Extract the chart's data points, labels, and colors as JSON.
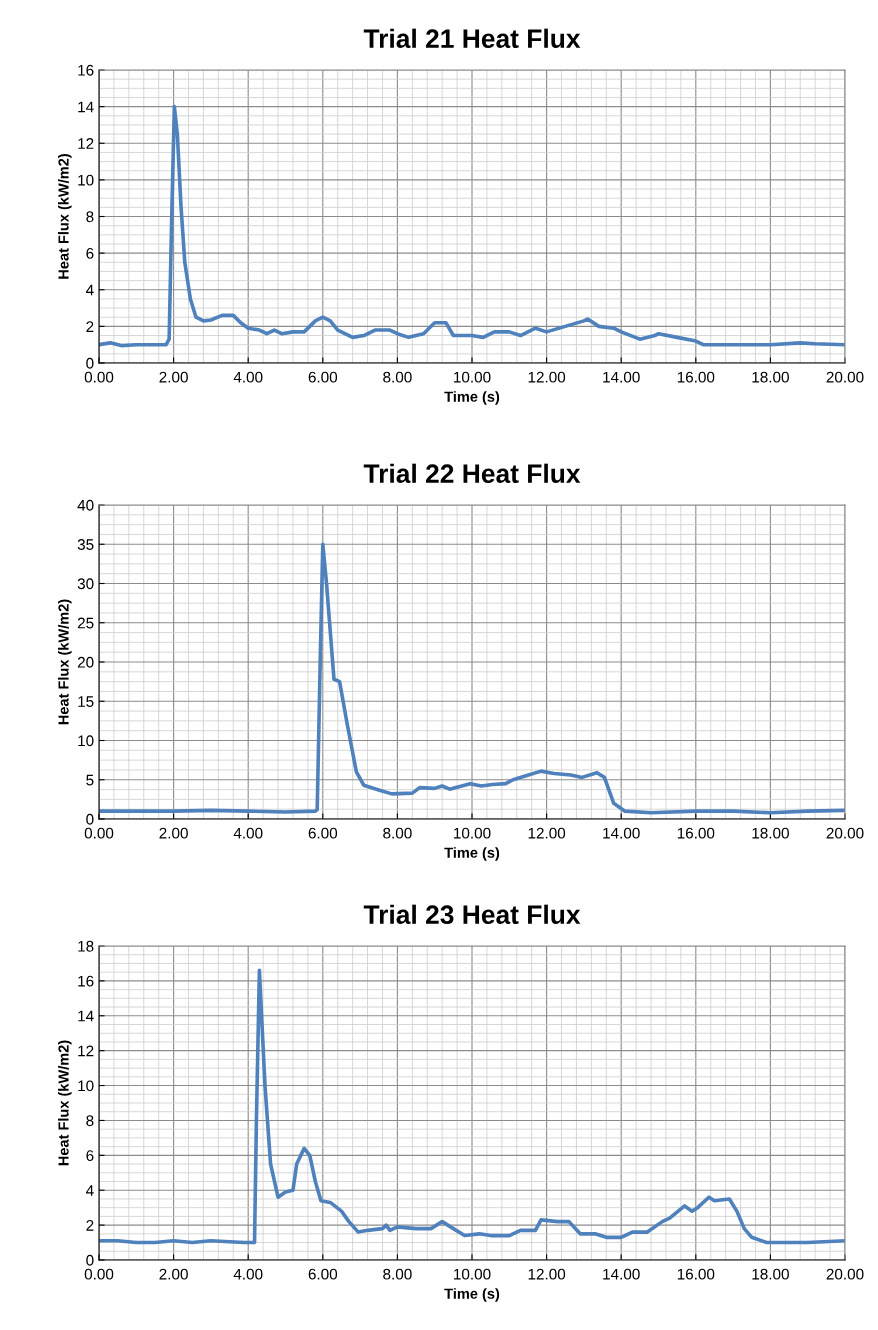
{
  "chart_data": [
    {
      "type": "line",
      "title": "Trial 21 Heat Flux",
      "xlabel": "Time (s)",
      "ylabel": "Heat Flux (kW/m2)",
      "grid": true,
      "marker": "none",
      "line_style": "solid",
      "xlim": [
        0,
        20
      ],
      "ylim": [
        0,
        16
      ],
      "xticks": [
        {
          "value": 0,
          "label": "0.00"
        },
        {
          "value": 2,
          "label": "2.00"
        },
        {
          "value": 4,
          "label": "4.00"
        },
        {
          "value": 6,
          "label": "6.00"
        },
        {
          "value": 8,
          "label": "8.00"
        },
        {
          "value": 10,
          "label": "10.00"
        },
        {
          "value": 12,
          "label": "12.00"
        },
        {
          "value": 14,
          "label": "14.00"
        },
        {
          "value": 16,
          "label": "16.00"
        },
        {
          "value": 18,
          "label": "18.00"
        },
        {
          "value": 20,
          "label": "20.00"
        }
      ],
      "yticks": [
        0,
        2,
        4,
        6,
        8,
        10,
        12,
        14,
        16
      ],
      "series": [
        {
          "color": "#4f81bd",
          "x": [
            0,
            0.3,
            0.6,
            1.0,
            1.4,
            1.8,
            1.88,
            1.95,
            2.02,
            2.1,
            2.2,
            2.3,
            2.45,
            2.6,
            2.8,
            3.0,
            3.3,
            3.6,
            3.8,
            4.0,
            4.3,
            4.5,
            4.7,
            4.9,
            5.2,
            5.5,
            5.8,
            6.0,
            6.2,
            6.4,
            6.8,
            7.1,
            7.4,
            7.8,
            8.0,
            8.3,
            8.7,
            9.0,
            9.3,
            9.5,
            10.0,
            10.3,
            10.6,
            11.0,
            11.3,
            11.7,
            12.0,
            12.5,
            13.0,
            13.1,
            13.4,
            13.8,
            14.0,
            14.5,
            14.9,
            15.0,
            15.5,
            16.0,
            16.2,
            17.0,
            18.0,
            18.8,
            19.2,
            20.0
          ],
          "values": [
            1.0,
            1.1,
            0.95,
            1.0,
            1.0,
            1.0,
            1.3,
            8,
            14.0,
            12.5,
            8.5,
            5.5,
            3.5,
            2.5,
            2.3,
            2.35,
            2.6,
            2.6,
            2.2,
            1.9,
            1.8,
            1.6,
            1.8,
            1.6,
            1.7,
            1.7,
            2.3,
            2.5,
            2.3,
            1.8,
            1.4,
            1.5,
            1.8,
            1.8,
            1.6,
            1.4,
            1.6,
            2.2,
            2.2,
            1.5,
            1.5,
            1.4,
            1.7,
            1.7,
            1.5,
            1.9,
            1.7,
            2.0,
            2.3,
            2.4,
            2.0,
            1.9,
            1.7,
            1.3,
            1.5,
            1.6,
            1.4,
            1.2,
            1.0,
            1.0,
            1.0,
            1.1,
            1.05,
            1.0
          ]
        }
      ]
    },
    {
      "type": "line",
      "title": "Trial 22 Heat Flux",
      "xlabel": "Time (s)",
      "ylabel": "Heat Flux (kW/m2)",
      "grid": true,
      "marker": "none",
      "line_style": "solid",
      "xlim": [
        0,
        20
      ],
      "ylim": [
        0,
        40
      ],
      "xticks": [
        {
          "value": 0,
          "label": "0.00"
        },
        {
          "value": 2,
          "label": "2.00"
        },
        {
          "value": 4,
          "label": "4.00"
        },
        {
          "value": 6,
          "label": "6.00"
        },
        {
          "value": 8,
          "label": "8.00"
        },
        {
          "value": 10,
          "label": "10.00"
        },
        {
          "value": 12,
          "label": "12.00"
        },
        {
          "value": 14,
          "label": "14.00"
        },
        {
          "value": 16,
          "label": "16.00"
        },
        {
          "value": 18,
          "label": "18.00"
        },
        {
          "value": 20,
          "label": "20.00"
        }
      ],
      "yticks": [
        0,
        5,
        10,
        15,
        20,
        25,
        30,
        35,
        40
      ],
      "series": [
        {
          "color": "#4f81bd",
          "x": [
            0,
            1,
            2,
            3,
            4,
            5,
            5.8,
            5.85,
            5.93,
            6.0,
            6.1,
            6.3,
            6.45,
            6.65,
            6.9,
            7.1,
            7.5,
            7.85,
            8.4,
            8.6,
            9.0,
            9.2,
            9.4,
            9.95,
            10.25,
            10.55,
            10.9,
            11.1,
            11.45,
            11.85,
            12.2,
            12.65,
            12.95,
            13.35,
            13.55,
            13.8,
            14.1,
            14.8,
            16,
            17,
            18,
            19,
            20
          ],
          "values": [
            1.0,
            1.0,
            1.0,
            1.1,
            1.0,
            0.9,
            1.0,
            1.2,
            20,
            35,
            30,
            17.8,
            17.5,
            12.2,
            6,
            4.3,
            3.7,
            3.2,
            3.3,
            4.0,
            3.9,
            4.2,
            3.8,
            4.5,
            4.2,
            4.4,
            4.5,
            5.0,
            5.5,
            6.1,
            5.8,
            5.6,
            5.3,
            5.9,
            5.3,
            2.0,
            1.0,
            0.8,
            1.0,
            1.0,
            0.8,
            1.0,
            1.1
          ]
        }
      ]
    },
    {
      "type": "line",
      "title": "Trial 23 Heat Flux",
      "xlabel": "Time (s)",
      "ylabel": "Heat Flux (kW/m2)",
      "grid": true,
      "marker": "none",
      "line_style": "solid",
      "xlim": [
        0,
        20
      ],
      "ylim": [
        0,
        18
      ],
      "xticks": [
        {
          "value": 0,
          "label": "0.00"
        },
        {
          "value": 2,
          "label": "2.00"
        },
        {
          "value": 4,
          "label": "4.00"
        },
        {
          "value": 6,
          "label": "6.00"
        },
        {
          "value": 8,
          "label": "8.00"
        },
        {
          "value": 10,
          "label": "10.00"
        },
        {
          "value": 12,
          "label": "12.00"
        },
        {
          "value": 14,
          "label": "14.00"
        },
        {
          "value": 16,
          "label": "16.00"
        },
        {
          "value": 18,
          "label": "18.00"
        },
        {
          "value": 20,
          "label": "20.00"
        }
      ],
      "yticks": [
        0,
        2,
        4,
        6,
        8,
        10,
        12,
        14,
        16,
        18
      ],
      "series": [
        {
          "color": "#4f81bd",
          "x": [
            0,
            0.5,
            1,
            1.5,
            2,
            2.5,
            3,
            3.5,
            3.9,
            4.17,
            4.22,
            4.3,
            4.45,
            4.6,
            4.8,
            5.0,
            5.2,
            5.3,
            5.5,
            5.65,
            5.8,
            5.95,
            6.2,
            6.5,
            6.7,
            6.95,
            7.2,
            7.6,
            7.7,
            7.8,
            8.0,
            8.5,
            8.9,
            9.2,
            9.5,
            9.8,
            10.2,
            10.5,
            11,
            11.3,
            11.7,
            11.85,
            12.3,
            12.6,
            12.9,
            13.3,
            13.6,
            14.0,
            14.3,
            14.7,
            15.1,
            15.3,
            15.7,
            15.9,
            16.05,
            16.35,
            16.5,
            16.9,
            17.1,
            17.3,
            17.5,
            17.9,
            18.5,
            19,
            20
          ],
          "values": [
            1.1,
            1.1,
            1.0,
            1.0,
            1.1,
            1.0,
            1.1,
            1.05,
            1.0,
            1.0,
            8,
            16.6,
            10,
            5.5,
            3.6,
            3.9,
            4.0,
            5.5,
            6.4,
            6.0,
            4.5,
            3.4,
            3.3,
            2.8,
            2.2,
            1.6,
            1.7,
            1.8,
            2.0,
            1.7,
            1.9,
            1.8,
            1.8,
            2.2,
            1.8,
            1.4,
            1.5,
            1.4,
            1.4,
            1.7,
            1.7,
            2.3,
            2.2,
            2.2,
            1.5,
            1.5,
            1.3,
            1.3,
            1.6,
            1.6,
            2.2,
            2.4,
            3.1,
            2.8,
            3.0,
            3.6,
            3.4,
            3.5,
            2.8,
            1.8,
            1.3,
            1.0,
            1.0,
            1.0,
            1.1
          ]
        }
      ]
    }
  ]
}
